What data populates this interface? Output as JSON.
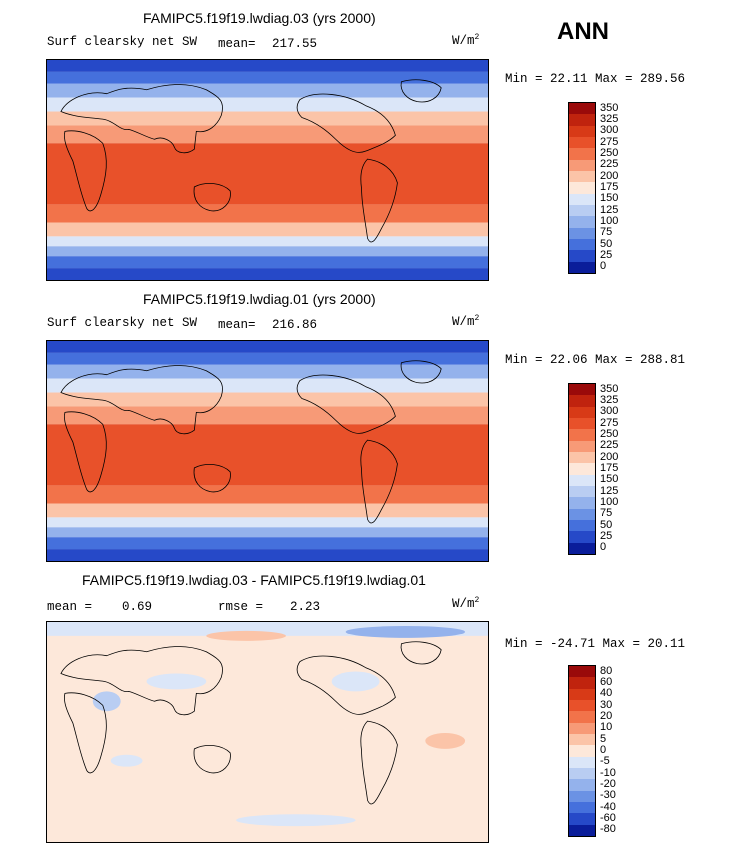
{
  "season": "ANN",
  "panels": [
    {
      "title": "FAMIPC5.f19f19.lwdiag.03 (yrs 2000)",
      "left_label": "Surf clearsky net SW",
      "stat_label": "mean=",
      "stat_value": "217.55",
      "stat2_label": "",
      "stat2_value": "",
      "units": "W/m",
      "units_exp": "2",
      "minmax": "Min =   22.11 Max =  289.56",
      "colorbar": {
        "labels": [
          "350",
          "325",
          "300",
          "275",
          "250",
          "225",
          "200",
          "175",
          "150",
          "125",
          "100",
          "75",
          "50",
          "25",
          "0"
        ],
        "colors": [
          "#9a0a0a",
          "#c0230e",
          "#d83a17",
          "#e8512a",
          "#f2734a",
          "#f79a77",
          "#fbc4a8",
          "#fde8da",
          "#dbe6f8",
          "#b9cdf2",
          "#94b2ec",
          "#6b92e4",
          "#4570dc",
          "#2649c8",
          "#0a1d9a"
        ]
      }
    },
    {
      "title": "FAMIPC5.f19f19.lwdiag.01 (yrs 2000)",
      "left_label": "Surf clearsky net SW",
      "stat_label": "mean=",
      "stat_value": "216.86",
      "stat2_label": "",
      "stat2_value": "",
      "units": "W/m",
      "units_exp": "2",
      "minmax": "Min =   22.06 Max =  288.81",
      "colorbar": {
        "labels": [
          "350",
          "325",
          "300",
          "275",
          "250",
          "225",
          "200",
          "175",
          "150",
          "125",
          "100",
          "75",
          "50",
          "25",
          "0"
        ],
        "colors": [
          "#9a0a0a",
          "#c0230e",
          "#d83a17",
          "#e8512a",
          "#f2734a",
          "#f79a77",
          "#fbc4a8",
          "#fde8da",
          "#dbe6f8",
          "#b9cdf2",
          "#94b2ec",
          "#6b92e4",
          "#4570dc",
          "#2649c8",
          "#0a1d9a"
        ]
      }
    },
    {
      "title": "FAMIPC5.f19f19.lwdiag.03 - FAMIPC5.f19f19.lwdiag.01",
      "left_label": "mean =",
      "stat_label": "",
      "stat_value": "0.69",
      "stat2_label": "rmse =",
      "stat2_value": "2.23",
      "units": "W/m",
      "units_exp": "2",
      "minmax": "Min = -24.71 Max =  20.11",
      "colorbar": {
        "labels": [
          "80",
          "60",
          "40",
          "30",
          "20",
          "10",
          "5",
          "0",
          "-5",
          "-10",
          "-20",
          "-30",
          "-40",
          "-60",
          "-80"
        ],
        "colors": [
          "#9a0a0a",
          "#c0230e",
          "#d83a17",
          "#e8512a",
          "#f2734a",
          "#f79a77",
          "#fbc4a8",
          "#fde8da",
          "#dbe6f8",
          "#b9cdf2",
          "#94b2ec",
          "#6b92e4",
          "#4570dc",
          "#2649c8",
          "#0a1d9a"
        ]
      }
    }
  ]
}
